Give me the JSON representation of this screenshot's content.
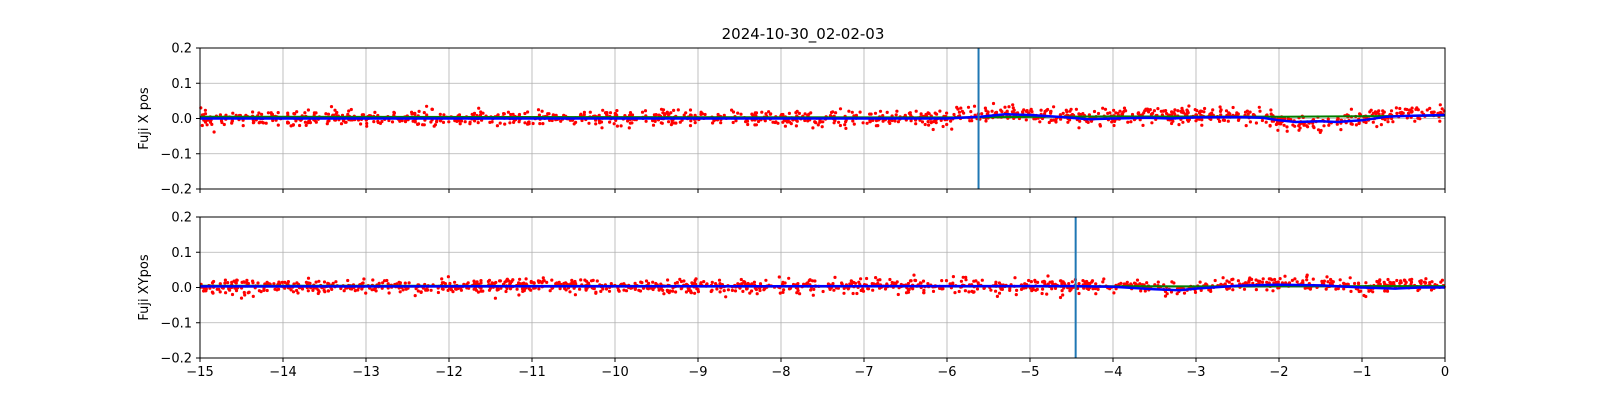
{
  "figure": {
    "title": "2024-10-30_02-02-03"
  },
  "chart_data": [
    {
      "type": "scatter",
      "title": "2024-10-30_02-02-03",
      "xlabel": "",
      "ylabel": "Fuji X pos",
      "xlim": [
        -15,
        0
      ],
      "ylim": [
        -0.2,
        0.2
      ],
      "x_ticks": [
        -15,
        -14,
        -13,
        -12,
        -11,
        -10,
        -9,
        -8,
        -7,
        -6,
        -5,
        -4,
        -3,
        -2,
        -1,
        0
      ],
      "y_ticks": [
        -0.2,
        -0.1,
        0.0,
        0.1,
        0.2
      ],
      "x_tick_labels": [
        "−15",
        "−14",
        "−13",
        "−12",
        "−11",
        "−10",
        "−9",
        "−8",
        "−7",
        "−6",
        "−5",
        "−4",
        "−3",
        "−2",
        "−1",
        "0"
      ],
      "y_tick_labels": [
        "−0.2",
        "−0.1",
        "0.0",
        "0.1",
        "0.2"
      ],
      "grid": true,
      "vertical_line": {
        "x": -5.62,
        "color": "#1f77b4"
      },
      "colors": {
        "scatter": "#ff0000",
        "smooth": "#0000ff",
        "trend": "#008000"
      },
      "scatter_band": {
        "x_range": [
          -15,
          0
        ],
        "spread": 0.022,
        "center": [
          [
            -15,
            0.0
          ],
          [
            -6,
            0.0
          ],
          [
            -5.6,
            0.012
          ],
          [
            -5.3,
            0.02
          ],
          [
            -5.0,
            0.012
          ],
          [
            -4.5,
            0.005
          ],
          [
            -4.0,
            0.005
          ],
          [
            -3.5,
            0.008
          ],
          [
            -3.0,
            0.01
          ],
          [
            -2.5,
            0.008
          ],
          [
            -2.0,
            -0.005
          ],
          [
            -1.5,
            -0.015
          ],
          [
            -1.0,
            -0.002
          ],
          [
            -0.5,
            0.018
          ],
          [
            0,
            0.015
          ]
        ]
      },
      "smooth_line": [
        [
          -15,
          0.0
        ],
        [
          -6.0,
          0.0
        ],
        [
          -5.6,
          0.005
        ],
        [
          -5.3,
          0.012
        ],
        [
          -5.0,
          0.01
        ],
        [
          -4.6,
          0.004
        ],
        [
          -4.3,
          -0.002
        ],
        [
          -4.0,
          0.0
        ],
        [
          -3.6,
          0.002
        ],
        [
          -3.3,
          0.0
        ],
        [
          -3.0,
          0.003
        ],
        [
          -2.5,
          0.004
        ],
        [
          -2.2,
          0.002
        ],
        [
          -2.0,
          -0.005
        ],
        [
          -1.8,
          -0.01
        ],
        [
          -1.5,
          -0.008
        ],
        [
          -1.3,
          -0.01
        ],
        [
          -1.0,
          -0.005
        ],
        [
          -0.7,
          0.005
        ],
        [
          -0.4,
          0.008
        ],
        [
          0,
          0.01
        ]
      ],
      "trend_line": [
        [
          -15,
          0.005
        ],
        [
          -6,
          0.003
        ],
        [
          -4,
          0.006
        ],
        [
          -2,
          0.005
        ],
        [
          0,
          0.008
        ]
      ]
    },
    {
      "type": "scatter",
      "xlabel": "",
      "ylabel": "Fuji XYpos",
      "xlim": [
        -15,
        0
      ],
      "ylim": [
        -0.2,
        0.2
      ],
      "x_ticks": [
        -15,
        -14,
        -13,
        -12,
        -11,
        -10,
        -9,
        -8,
        -7,
        -6,
        -5,
        -4,
        -3,
        -2,
        -1,
        0
      ],
      "y_ticks": [
        -0.2,
        -0.1,
        0.0,
        0.1,
        0.2
      ],
      "x_tick_labels": [
        "−15",
        "−14",
        "−13",
        "−12",
        "−11",
        "−10",
        "−9",
        "−8",
        "−7",
        "−6",
        "−5",
        "−4",
        "−3",
        "−2",
        "−1",
        "0"
      ],
      "y_tick_labels": [
        "−0.2",
        "−0.1",
        "0.0",
        "0.1",
        "0.2"
      ],
      "grid": true,
      "vertical_line": {
        "x": -4.45,
        "color": "#1f77b4"
      },
      "colors": {
        "scatter": "#ff0000",
        "smooth": "#0000ff",
        "trend": "#008000"
      },
      "scatter_band": {
        "x_range": [
          -15,
          0
        ],
        "spread": 0.02,
        "center": [
          [
            -15,
            0.003
          ],
          [
            -5,
            0.004
          ],
          [
            -4.0,
            0.006
          ],
          [
            -3.5,
            0.0
          ],
          [
            -3.0,
            -0.002
          ],
          [
            -2.5,
            0.01
          ],
          [
            -2.0,
            0.012
          ],
          [
            -1.5,
            0.008
          ],
          [
            -1.0,
            0.0
          ],
          [
            -0.5,
            0.012
          ],
          [
            0,
            0.0
          ]
        ]
      },
      "smooth_line": [
        [
          -15,
          0.003
        ],
        [
          -4.5,
          0.004
        ],
        [
          -4.0,
          0.002
        ],
        [
          -3.5,
          -0.005
        ],
        [
          -3.2,
          -0.008
        ],
        [
          -3.0,
          -0.003
        ],
        [
          -2.5,
          0.005
        ],
        [
          -2.0,
          0.008
        ],
        [
          -1.5,
          0.006
        ],
        [
          -1.0,
          0.0
        ],
        [
          -0.6,
          -0.003
        ],
        [
          -0.3,
          0.0
        ],
        [
          0,
          0.0
        ]
      ],
      "trend_line": [
        [
          -15,
          0.005
        ],
        [
          -5,
          0.004
        ],
        [
          -3,
          0.003
        ],
        [
          -1,
          0.004
        ],
        [
          0,
          0.004
        ]
      ]
    }
  ]
}
